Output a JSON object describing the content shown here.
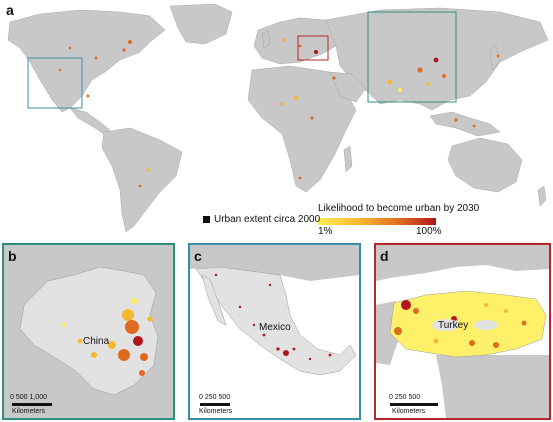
{
  "panels": {
    "a": {
      "letter": "a"
    },
    "b": {
      "letter": "b",
      "place": "China",
      "scale_ticks": "0    500  1,000",
      "scale_unit": "Kilometers"
    },
    "c": {
      "letter": "c",
      "place": "Mexico",
      "scale_ticks": "0   250  500",
      "scale_unit": "Kilometers"
    },
    "d": {
      "letter": "d",
      "place": "Turkey",
      "scale_ticks": "0      250      500",
      "scale_unit": "Kilometers"
    }
  },
  "legend": {
    "urban_label": "Urban extent circa 2000",
    "likelihood_title": "Likelihood to become urban by 2030",
    "min_label": "1%",
    "max_label": "100%"
  },
  "colors": {
    "land": "#c8c8c8",
    "land_dark": "#b0b0b0",
    "frame_b": "#2f8f7f",
    "frame_c": "#3a8fa8",
    "frame_d": "#b2262c",
    "gradient": [
      "#ffee55",
      "#f5b830",
      "#e06a20",
      "#b2141c"
    ]
  }
}
